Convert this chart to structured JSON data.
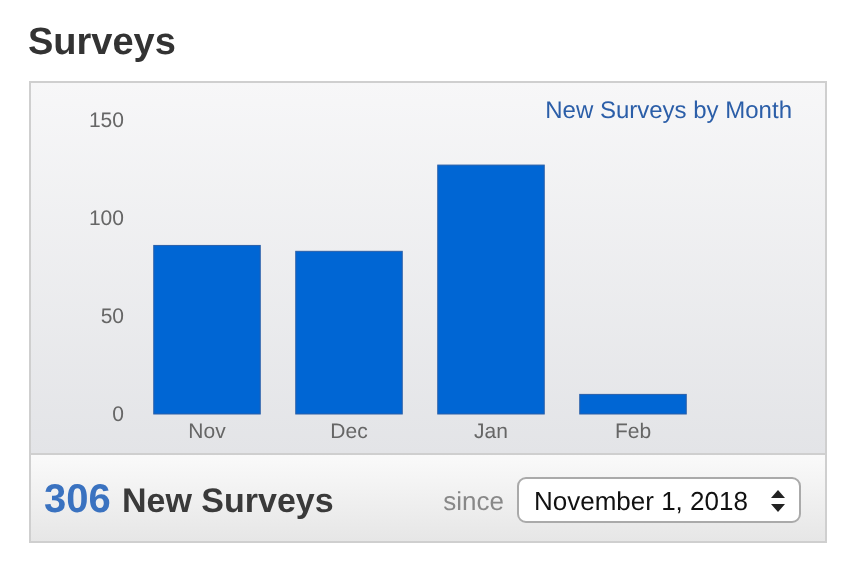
{
  "chart_data": {
    "type": "bar",
    "title": "Surveys",
    "subtitle": "New Surveys by Month",
    "categories": [
      "Nov",
      "Dec",
      "Jan",
      "Feb"
    ],
    "values": [
      86,
      83,
      127,
      10
    ],
    "color": "#0066d4",
    "ylim": [
      0,
      150
    ],
    "yticks": [
      0,
      50,
      100,
      150
    ],
    "grid": false,
    "annotations": [
      "306",
      "New Surveys",
      "since",
      "November 1, 2018"
    ]
  }
}
